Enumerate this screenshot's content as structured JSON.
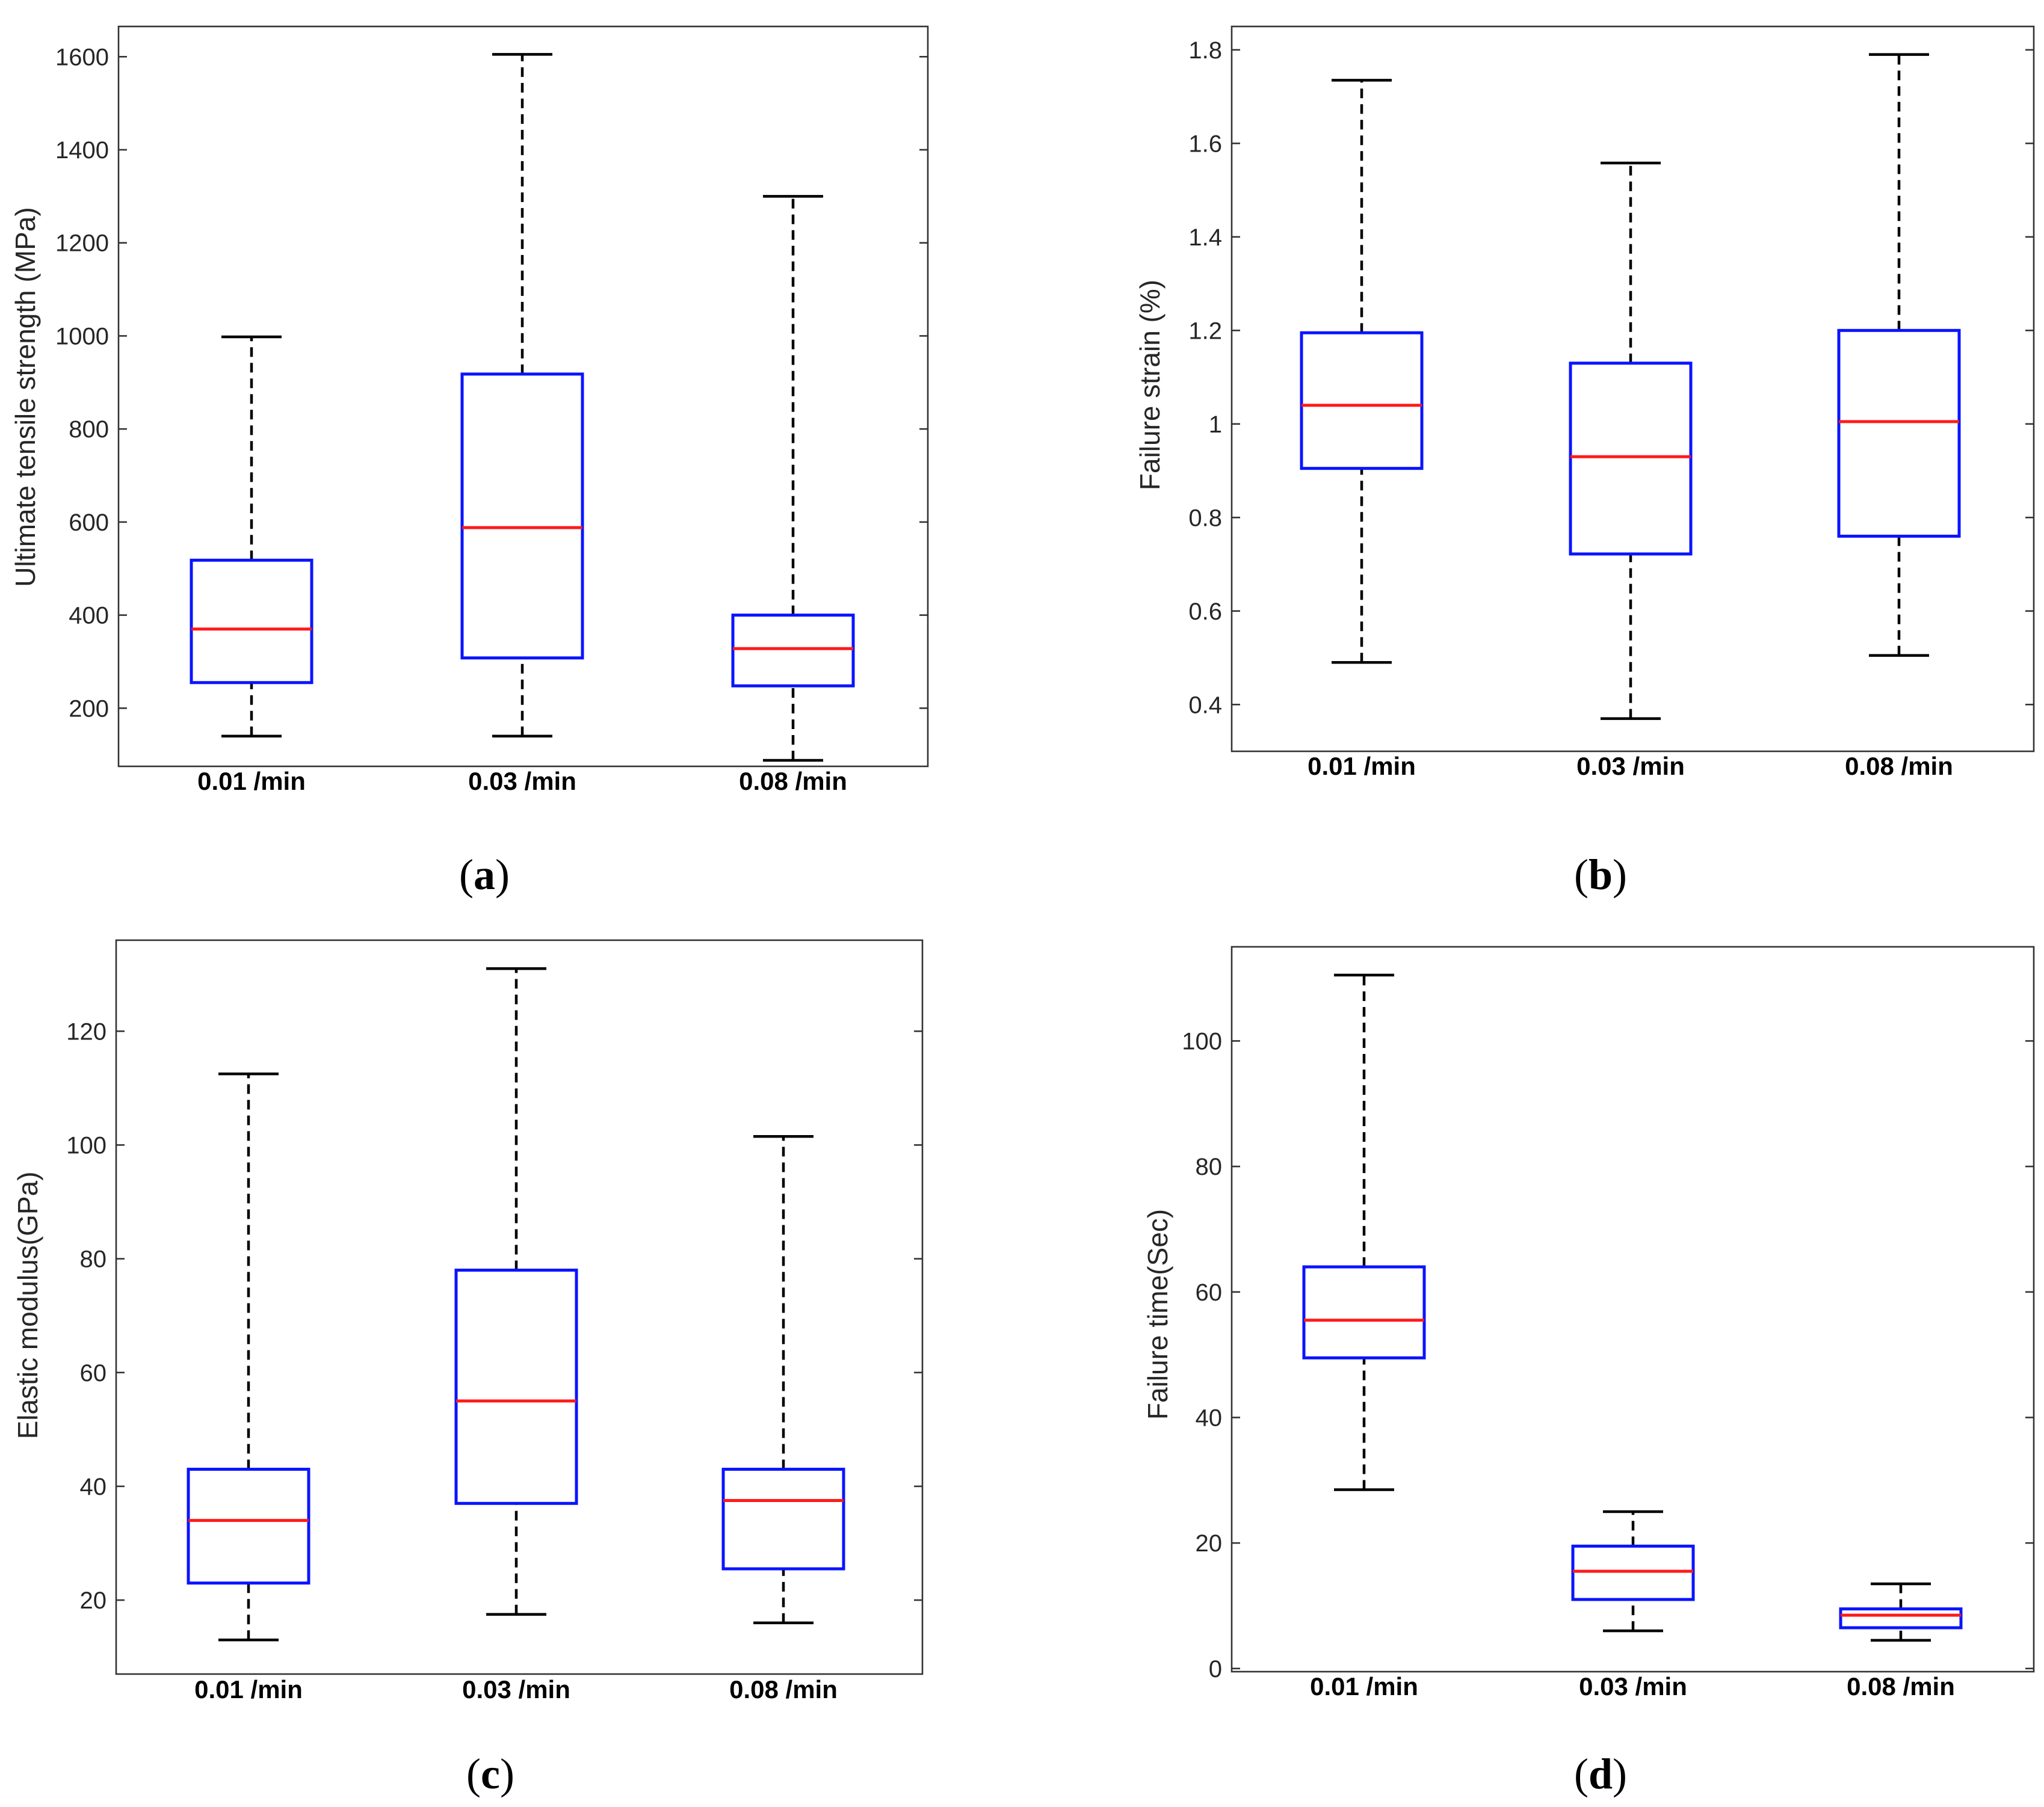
{
  "chart_data": [
    {
      "type": "boxplot",
      "panel": "a",
      "title": "",
      "ylabel": "Ultimate tensile strength (MPa)",
      "xlabel": "",
      "categories": [
        "0.01 /min",
        "0.03 /min",
        "0.08 /min"
      ],
      "ylim": [
        75,
        1665
      ],
      "yticks": [
        200,
        400,
        600,
        800,
        1000,
        1200,
        1400,
        1600
      ],
      "boxes": [
        {
          "min": 140,
          "q1": 255,
          "median": 370,
          "q3": 518,
          "max": 998
        },
        {
          "min": 140,
          "q1": 308,
          "median": 588,
          "q3": 918,
          "max": 1605
        },
        {
          "min": 88,
          "q1": 248,
          "median": 328,
          "q3": 400,
          "max": 1300
        }
      ]
    },
    {
      "type": "boxplot",
      "panel": "b",
      "title": "",
      "ylabel": "Failure strain (%)",
      "xlabel": "",
      "categories": [
        "0.01 /min",
        "0.03 /min",
        "0.08 /min"
      ],
      "ylim": [
        0.3,
        1.85
      ],
      "yticks": [
        0.4,
        0.6,
        0.8,
        1,
        1.2,
        1.4,
        1.6,
        1.8
      ],
      "boxes": [
        {
          "min": 0.49,
          "q1": 0.905,
          "median": 1.04,
          "q3": 1.195,
          "max": 1.735
        },
        {
          "min": 0.37,
          "q1": 0.722,
          "median": 0.93,
          "q3": 1.13,
          "max": 1.558
        },
        {
          "min": 0.505,
          "q1": 0.76,
          "median": 1.005,
          "q3": 1.2,
          "max": 1.79
        }
      ]
    },
    {
      "type": "boxplot",
      "panel": "c",
      "title": "",
      "ylabel": "Elastic modulus(GPa)",
      "xlabel": "",
      "categories": [
        "0.01 /min",
        "0.03 /min",
        "0.08 /min"
      ],
      "ylim": [
        7,
        136
      ],
      "yticks": [
        20,
        40,
        60,
        80,
        100,
        120
      ],
      "boxes": [
        {
          "min": 13,
          "q1": 23,
          "median": 34,
          "q3": 43,
          "max": 112.5
        },
        {
          "min": 17.5,
          "q1": 37,
          "median": 55,
          "q3": 78,
          "max": 131
        },
        {
          "min": 16,
          "q1": 25.5,
          "median": 37.5,
          "q3": 43,
          "max": 101.5
        }
      ]
    },
    {
      "type": "boxplot",
      "panel": "d",
      "title": "",
      "ylabel": "Failure time(Sec)",
      "xlabel": "",
      "categories": [
        "0.01 /min",
        "0.03 /min",
        "0.08 /min"
      ],
      "ylim": [
        -0.5,
        115
      ],
      "yticks": [
        0,
        20,
        40,
        60,
        80,
        100
      ],
      "boxes": [
        {
          "min": 28.5,
          "q1": 49.5,
          "median": 55.5,
          "q3": 64,
          "max": 110.5
        },
        {
          "min": 6,
          "q1": 11,
          "median": 15.5,
          "q3": 19.5,
          "max": 25
        },
        {
          "min": 4.5,
          "q1": 6.5,
          "median": 8.5,
          "q3": 9.5,
          "max": 13.5
        }
      ]
    }
  ],
  "panel_labels": [
    {
      "open": "(",
      "letter": "a",
      "close": ")"
    },
    {
      "open": "(",
      "letter": "b",
      "close": ")"
    },
    {
      "open": "(",
      "letter": "c",
      "close": ")"
    },
    {
      "open": "(",
      "letter": "d",
      "close": ")"
    }
  ]
}
